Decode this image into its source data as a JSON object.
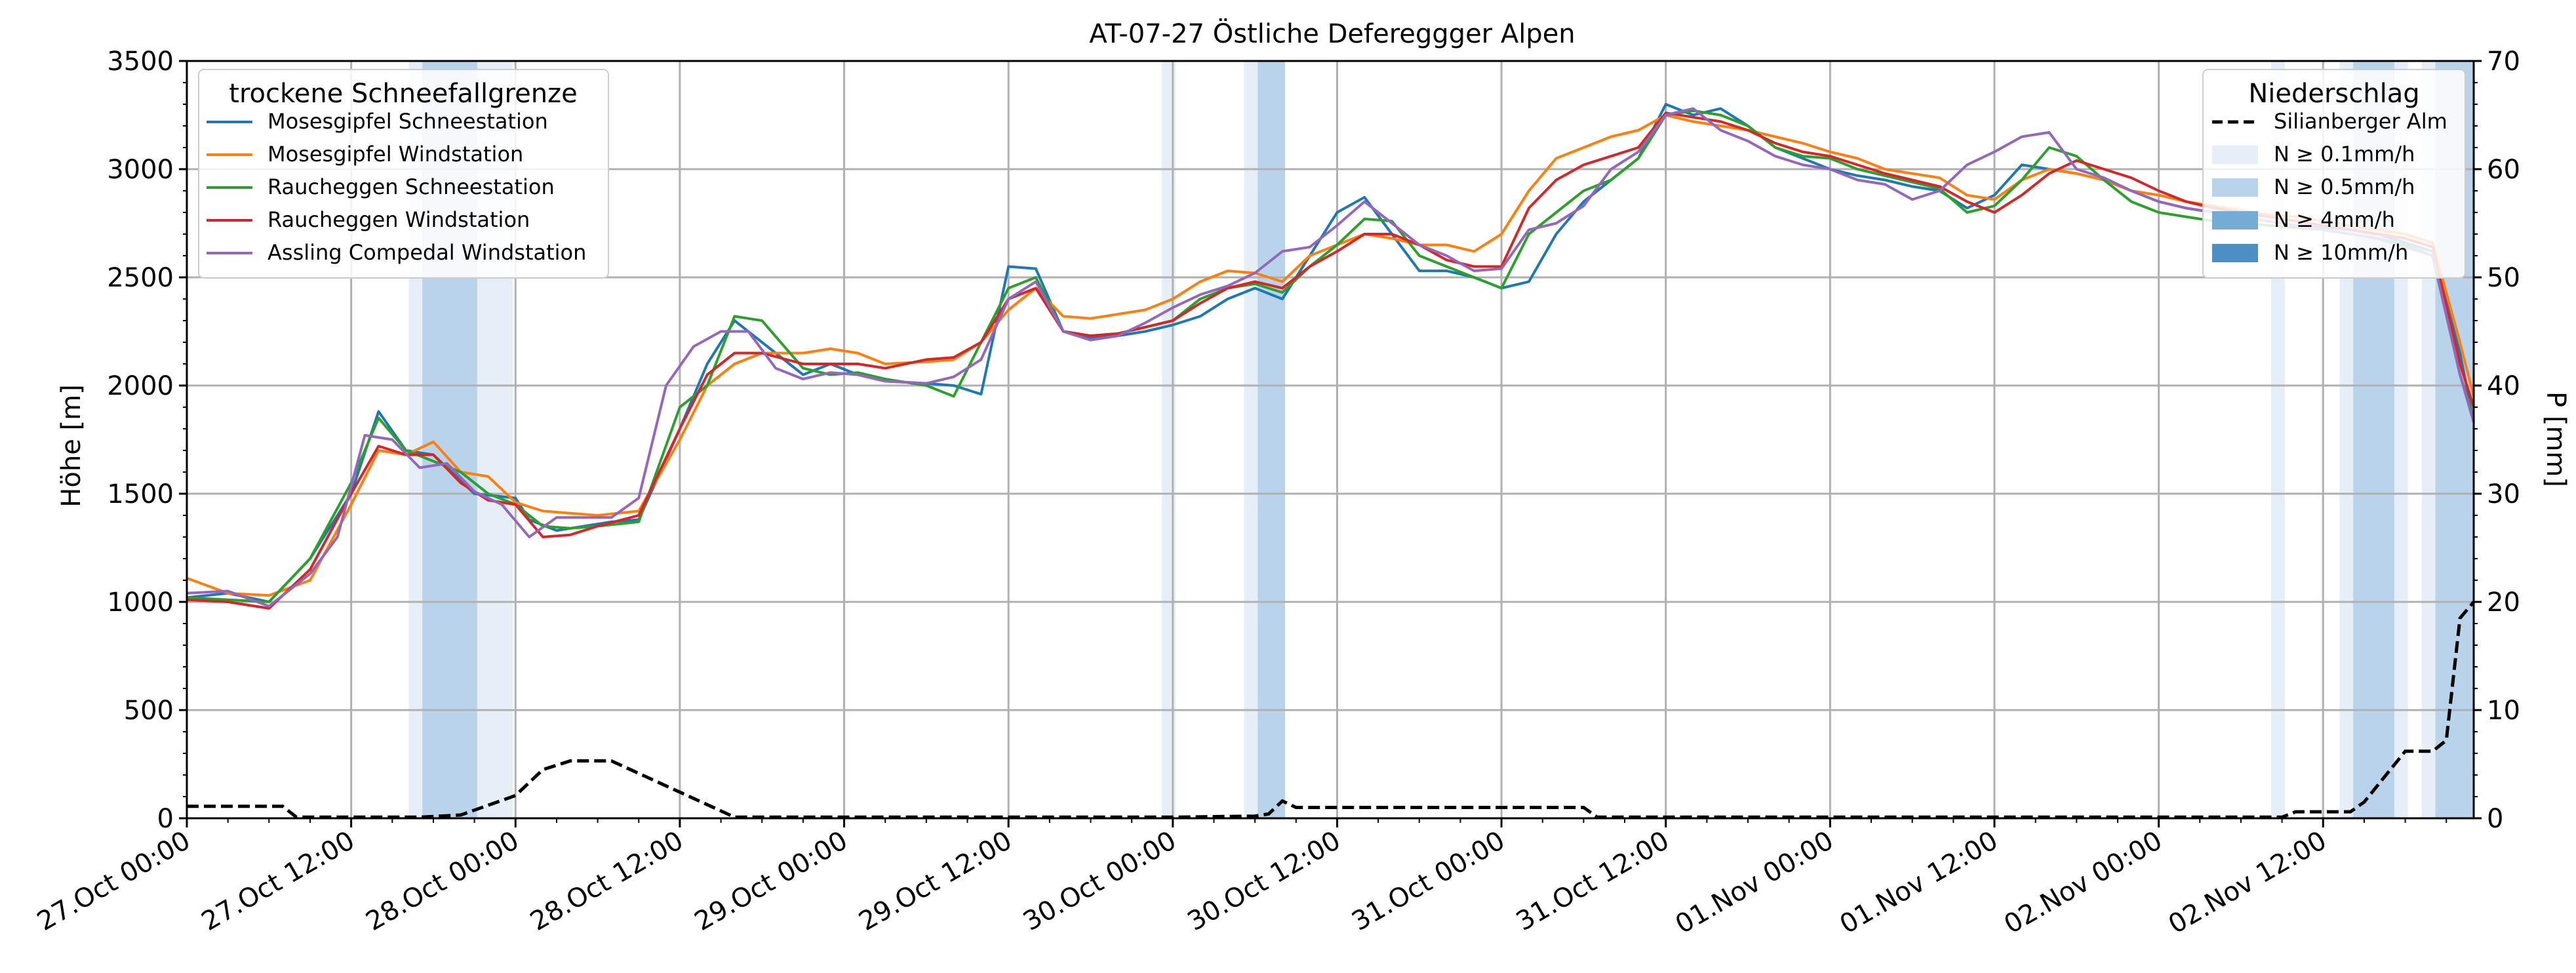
{
  "chart_data": {
    "type": "line",
    "title": "AT-07-27 Östliche Defereggger Alpen",
    "ylabel_left": "Höhe [m]",
    "ylabel_right": "P [mm]",
    "ylim_left": [
      0,
      3500
    ],
    "ylim_right": [
      0,
      70
    ],
    "yticks_left": [
      0,
      500,
      1000,
      1500,
      2000,
      2500,
      3000,
      3500
    ],
    "yticks_right": [
      0,
      10,
      20,
      30,
      40,
      50,
      60,
      70
    ],
    "xlim_hours": [
      0,
      167
    ],
    "xticks": [
      {
        "label": "27.Oct 00:00",
        "h": 0
      },
      {
        "label": "27.Oct 12:00",
        "h": 12
      },
      {
        "label": "28.Oct 00:00",
        "h": 24
      },
      {
        "label": "28.Oct 12:00",
        "h": 36
      },
      {
        "label": "29.Oct 00:00",
        "h": 48
      },
      {
        "label": "29.Oct 12:00",
        "h": 60
      },
      {
        "label": "30.Oct 00:00",
        "h": 72
      },
      {
        "label": "30.Oct 12:00",
        "h": 84
      },
      {
        "label": "31.Oct 00:00",
        "h": 96
      },
      {
        "label": "31.Oct 12:00",
        "h": 108
      },
      {
        "label": "01.Nov 00:00",
        "h": 120
      },
      {
        "label": "01.Nov 12:00",
        "h": 132
      },
      {
        "label": "02.Nov 00:00",
        "h": 144
      },
      {
        "label": "02.Nov 12:00",
        "h": 156
      }
    ],
    "grid": true,
    "legend_left": {
      "title": "trockene Schneefallgrenze",
      "placement": "top-left",
      "entries": [
        "Mosesgipfel Schneestation",
        "Mosesgipfel Windstation",
        "Raucheggen Schneestation",
        "Raucheggen Windstation",
        "Assling Compedal Windstation"
      ]
    },
    "legend_right": {
      "title": "Niederschlag",
      "placement": "top-right",
      "entries": [
        "Silianberger Alm",
        "N ≥ 0.1mm/h",
        "N ≥ 0.5mm/h",
        "N ≥ 4mm/h",
        "N ≥ 10mm/h"
      ]
    },
    "series": [
      {
        "name": "Mosesgipfel Schneestation",
        "color": "#1f77b4",
        "x": [
          0,
          3,
          6,
          9,
          12,
          14,
          16,
          18,
          21,
          24,
          25,
          27,
          29,
          31,
          33,
          36,
          38,
          40,
          42,
          45,
          47,
          49,
          51,
          54,
          56,
          58,
          60,
          62,
          64,
          66,
          68,
          70,
          72,
          74,
          76,
          78,
          80,
          82,
          84,
          86,
          88,
          90,
          92,
          94,
          96,
          98,
          100,
          102,
          104,
          106,
          108,
          110,
          112,
          114,
          116,
          118,
          120,
          122,
          124,
          126,
          128,
          130,
          132,
          134,
          136,
          138,
          140,
          142,
          144,
          146,
          148,
          150,
          152,
          154,
          156,
          158,
          160,
          162,
          164,
          166,
          167
        ],
        "y": [
          1020,
          1040,
          1000,
          1200,
          1500,
          1880,
          1700,
          1680,
          1500,
          1480,
          1380,
          1330,
          1350,
          1370,
          1380,
          1800,
          2100,
          2300,
          2200,
          2050,
          2100,
          2050,
          2020,
          2010,
          2000,
          1960,
          2550,
          2540,
          2250,
          2220,
          2230,
          2250,
          2280,
          2320,
          2400,
          2450,
          2400,
          2600,
          2800,
          2870,
          2700,
          2530,
          2530,
          2500,
          2450,
          2480,
          2700,
          2850,
          2950,
          3050,
          3300,
          3250,
          3280,
          3200,
          3100,
          3050,
          3000,
          2970,
          2950,
          2920,
          2900,
          2820,
          2880,
          3020,
          3000,
          2980,
          2950,
          2900,
          2850,
          2820,
          2800,
          2780,
          2760,
          2740,
          2730,
          2720,
          2700,
          2660,
          2620,
          2150,
          1830
        ]
      },
      {
        "name": "Mosesgipfel Windstation",
        "color": "#ff7f0e",
        "x": [
          0,
          3,
          6,
          9,
          12,
          14,
          16,
          18,
          20,
          22,
          24,
          26,
          28,
          30,
          33,
          36,
          38,
          40,
          42,
          45,
          47,
          49,
          51,
          54,
          56,
          58,
          60,
          62,
          64,
          66,
          68,
          70,
          72,
          74,
          76,
          78,
          80,
          82,
          84,
          86,
          88,
          90,
          92,
          94,
          96,
          98,
          100,
          102,
          104,
          106,
          108,
          110,
          112,
          114,
          116,
          118,
          120,
          122,
          124,
          126,
          128,
          130,
          132,
          134,
          136,
          138,
          140,
          142,
          144,
          146,
          148,
          150,
          152,
          154,
          156,
          158,
          160,
          162,
          164,
          166,
          167
        ],
        "y": [
          1110,
          1040,
          1030,
          1100,
          1450,
          1700,
          1680,
          1740,
          1600,
          1580,
          1460,
          1420,
          1410,
          1400,
          1420,
          1750,
          2000,
          2100,
          2150,
          2150,
          2170,
          2150,
          2100,
          2110,
          2120,
          2200,
          2350,
          2450,
          2320,
          2310,
          2330,
          2350,
          2400,
          2480,
          2530,
          2520,
          2480,
          2600,
          2650,
          2700,
          2680,
          2650,
          2650,
          2620,
          2700,
          2900,
          3050,
          3100,
          3150,
          3180,
          3250,
          3220,
          3200,
          3180,
          3150,
          3120,
          3080,
          3050,
          3000,
          2980,
          2960,
          2880,
          2860,
          2950,
          3000,
          2980,
          2950,
          2900,
          2880,
          2850,
          2830,
          2810,
          2790,
          2780,
          2760,
          2740,
          2720,
          2700,
          2660,
          2200,
          1950
        ]
      },
      {
        "name": "Raucheggen Schneestation",
        "color": "#2ca02c",
        "x": [
          0,
          3,
          6,
          9,
          12,
          14,
          16,
          18,
          20,
          22,
          24,
          26,
          28,
          30,
          33,
          36,
          38,
          40,
          42,
          45,
          47,
          49,
          51,
          54,
          56,
          58,
          60,
          62,
          64,
          66,
          68,
          70,
          72,
          74,
          76,
          78,
          80,
          82,
          84,
          86,
          88,
          90,
          92,
          94,
          96,
          98,
          100,
          102,
          104,
          106,
          108,
          110,
          112,
          114,
          116,
          118,
          120,
          122,
          124,
          126,
          128,
          130,
          132,
          134,
          136,
          138,
          140,
          142,
          144,
          146,
          148,
          150,
          152,
          154,
          156,
          158,
          160,
          162,
          164,
          166,
          167
        ],
        "y": [
          1020,
          1010,
          1000,
          1200,
          1550,
          1850,
          1700,
          1650,
          1600,
          1500,
          1450,
          1350,
          1340,
          1350,
          1370,
          1900,
          2000,
          2320,
          2300,
          2080,
          2050,
          2060,
          2030,
          2000,
          1950,
          2200,
          2450,
          2500,
          2250,
          2230,
          2240,
          2270,
          2300,
          2400,
          2450,
          2470,
          2430,
          2550,
          2650,
          2770,
          2760,
          2600,
          2550,
          2500,
          2450,
          2700,
          2800,
          2900,
          2950,
          3050,
          3250,
          3270,
          3250,
          3200,
          3100,
          3060,
          3050,
          3000,
          2970,
          2940,
          2910,
          2800,
          2830,
          2950,
          3100,
          3060,
          2950,
          2850,
          2800,
          2780,
          2760,
          2750,
          2740,
          2730,
          2720,
          2700,
          2680,
          2650,
          2600,
          2050,
          1850
        ]
      },
      {
        "name": "Raucheggen Windstation",
        "color": "#d62728",
        "x": [
          0,
          3,
          6,
          9,
          12,
          14,
          16,
          18,
          20,
          22,
          24,
          26,
          28,
          30,
          33,
          36,
          38,
          40,
          42,
          45,
          47,
          49,
          51,
          54,
          56,
          58,
          60,
          62,
          64,
          66,
          68,
          70,
          72,
          74,
          76,
          78,
          80,
          82,
          84,
          86,
          88,
          90,
          92,
          94,
          96,
          98,
          100,
          102,
          104,
          106,
          108,
          110,
          112,
          114,
          116,
          118,
          120,
          122,
          124,
          126,
          128,
          130,
          132,
          134,
          136,
          138,
          140,
          142,
          144,
          146,
          148,
          150,
          152,
          154,
          156,
          158,
          160,
          162,
          164,
          166,
          167
        ],
        "y": [
          1010,
          1000,
          970,
          1150,
          1500,
          1720,
          1680,
          1680,
          1550,
          1470,
          1450,
          1300,
          1310,
          1350,
          1400,
          1800,
          2050,
          2150,
          2150,
          2100,
          2100,
          2100,
          2080,
          2120,
          2130,
          2200,
          2400,
          2450,
          2250,
          2230,
          2240,
          2270,
          2300,
          2380,
          2450,
          2480,
          2450,
          2550,
          2620,
          2700,
          2700,
          2650,
          2580,
          2550,
          2550,
          2820,
          2950,
          3020,
          3060,
          3100,
          3260,
          3240,
          3220,
          3180,
          3120,
          3080,
          3060,
          3020,
          2980,
          2950,
          2920,
          2850,
          2800,
          2880,
          2980,
          3040,
          3000,
          2960,
          2900,
          2850,
          2820,
          2800,
          2780,
          2760,
          2740,
          2720,
          2700,
          2680,
          2640,
          2100,
          1900
        ]
      },
      {
        "name": "Assling Compedal Windstation",
        "color": "#9467bd",
        "x": [
          0,
          3,
          6,
          9,
          11,
          13,
          15,
          17,
          19,
          21,
          23,
          25,
          27,
          29,
          31,
          33,
          35,
          37,
          39,
          41,
          43,
          45,
          47,
          49,
          51,
          54,
          56,
          58,
          60,
          62,
          64,
          66,
          68,
          70,
          72,
          74,
          76,
          78,
          80,
          82,
          84,
          86,
          88,
          90,
          92,
          94,
          96,
          98,
          100,
          102,
          104,
          106,
          108,
          110,
          112,
          114,
          116,
          118,
          120,
          122,
          124,
          126,
          128,
          130,
          132,
          134,
          136,
          138,
          140,
          142,
          144,
          146,
          148,
          150,
          152,
          154,
          156,
          158,
          160,
          162,
          164,
          166,
          167
        ],
        "y": [
          1040,
          1050,
          980,
          1130,
          1300,
          1770,
          1750,
          1620,
          1640,
          1510,
          1450,
          1300,
          1390,
          1390,
          1390,
          1480,
          2000,
          2180,
          2250,
          2250,
          2080,
          2030,
          2060,
          2050,
          2020,
          2010,
          2040,
          2120,
          2400,
          2480,
          2250,
          2210,
          2230,
          2290,
          2360,
          2420,
          2460,
          2520,
          2620,
          2640,
          2740,
          2850,
          2750,
          2650,
          2600,
          2530,
          2540,
          2720,
          2750,
          2830,
          3000,
          3080,
          3250,
          3280,
          3180,
          3130,
          3060,
          3020,
          3000,
          2950,
          2930,
          2860,
          2900,
          3020,
          3080,
          3150,
          3170,
          3000,
          2960,
          2900,
          2850,
          2820,
          2800,
          2780,
          2760,
          2740,
          2720,
          2700,
          2680,
          2640,
          2600,
          2050,
          1830
        ]
      }
    ],
    "precip_series": {
      "name": "Silianberger Alm",
      "color": "#000000",
      "style": "dashed",
      "x": [
        0,
        7,
        8,
        17,
        20,
        22,
        24,
        26,
        28,
        30,
        31,
        40,
        72,
        78,
        79,
        80,
        81,
        102,
        103,
        153,
        154,
        158,
        159,
        162,
        164,
        165,
        166,
        167
      ],
      "y": [
        1.1,
        1.1,
        0.1,
        0.1,
        0.3,
        1.2,
        2.1,
        4.5,
        5.3,
        5.3,
        5.3,
        0.1,
        0.1,
        0.2,
        0.4,
        1.6,
        1.0,
        1.0,
        0.1,
        0.1,
        0.6,
        0.6,
        1.5,
        6.2,
        6.2,
        7.2,
        18.5,
        20
      ]
    },
    "precip_bands": [
      {
        "level": "0.1",
        "x0": 16.2,
        "x1": 23.8
      },
      {
        "level": "0.5",
        "x0": 17.2,
        "x1": 21.2
      },
      {
        "level": "0.1",
        "x0": 71.2,
        "x1": 72.2
      },
      {
        "level": "0.1",
        "x0": 77.2,
        "x1": 80.2
      },
      {
        "level": "0.5",
        "x0": 78.2,
        "x1": 80.2
      },
      {
        "level": "0.1",
        "x0": 152.2,
        "x1": 153.2
      },
      {
        "level": "0.1",
        "x0": 157.2,
        "x1": 162.2
      },
      {
        "level": "0.5",
        "x0": 158.2,
        "x1": 161.2
      },
      {
        "level": "0.1",
        "x0": 163.2,
        "x1": 167
      },
      {
        "level": "0.5",
        "x0": 164.2,
        "x1": 167
      }
    ],
    "band_colors": {
      "0.1": "#e6eff8",
      "0.5": "#b9d4ea",
      "4": "#74acd6",
      "10": "#4b8fc5"
    }
  }
}
